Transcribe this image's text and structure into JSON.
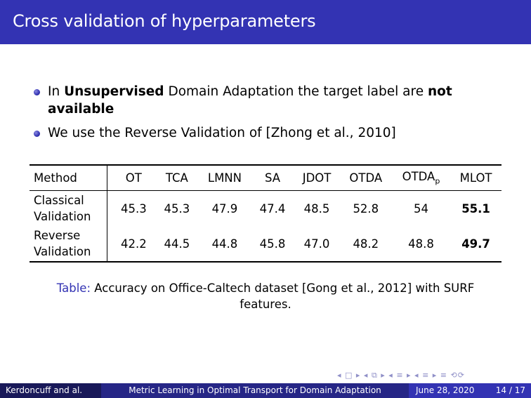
{
  "slide": {
    "title": "Cross validation of hyperparameters"
  },
  "bullets": [
    {
      "pre": "In ",
      "bold1": "Unsupervised",
      "mid": " Domain Adaptation the target label are ",
      "bold2": "not available"
    },
    {
      "text": "We use the Reverse Validation of [Zhong et al., 2010]"
    }
  ],
  "table": {
    "method_header": "Method",
    "headers": [
      "OT",
      "TCA",
      "LMNN",
      "SA",
      "JDOT",
      "OTDA",
      "OTDA",
      "MLOT"
    ],
    "otdap_subscript": "p",
    "rows": [
      {
        "method_line1": "Classical",
        "method_line2": "Validation",
        "values": [
          "45.3",
          "45.3",
          "47.9",
          "47.4",
          "48.5",
          "52.8",
          "54",
          "55.1"
        ]
      },
      {
        "method_line1": "Reverse",
        "method_line2": "Validation",
        "values": [
          "42.2",
          "44.5",
          "44.8",
          "45.8",
          "47.0",
          "48.2",
          "48.8",
          "49.7"
        ]
      }
    ]
  },
  "caption": {
    "label": "Table:",
    "text": " Accuracy on Office-Caltech dataset [Gong et al., 2012] with SURF features."
  },
  "footer": {
    "author": "Kerdoncuff and al.",
    "talk_title": "Metric Learning in Optimal Transport for Domain Adaptation",
    "date": "June 28, 2020",
    "page": "14 / 17"
  },
  "nav_symbols": "◂ □ ▸ ◂ ⧉ ▸ ◂ ≡ ▸ ◂ ≡ ▸ ≡ ⟲⟳"
}
